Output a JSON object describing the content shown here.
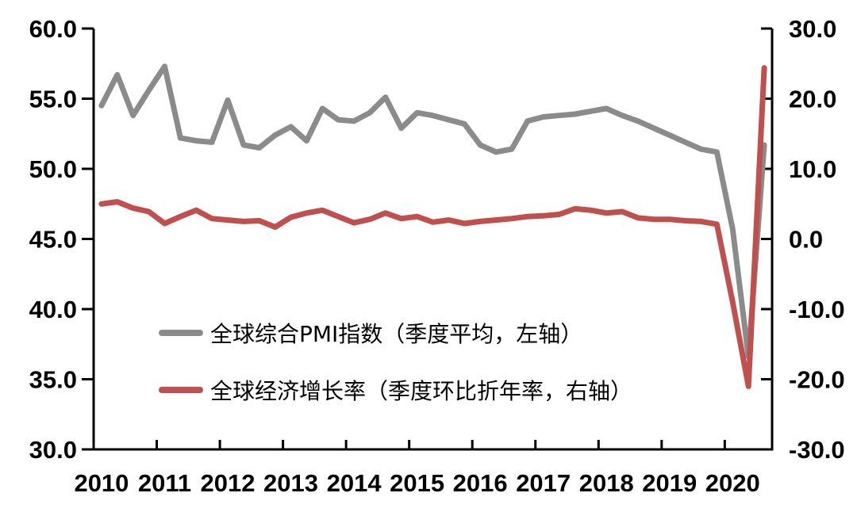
{
  "chart_data": {
    "type": "line",
    "title": "",
    "grid": false,
    "legend_position": "inside-center-left",
    "x_axis": {
      "year_labels": [
        "2010",
        "2011",
        "2012",
        "2013",
        "2014",
        "2015",
        "2016",
        "2017",
        "2018",
        "2019",
        "2020"
      ],
      "quarters": [
        "2010Q1",
        "2010Q2",
        "2010Q3",
        "2010Q4",
        "2011Q1",
        "2011Q2",
        "2011Q3",
        "2011Q4",
        "2012Q1",
        "2012Q2",
        "2012Q3",
        "2012Q4",
        "2013Q1",
        "2013Q2",
        "2013Q3",
        "2013Q4",
        "2014Q1",
        "2014Q2",
        "2014Q3",
        "2014Q4",
        "2015Q1",
        "2015Q2",
        "2015Q3",
        "2015Q4",
        "2016Q1",
        "2016Q2",
        "2016Q3",
        "2016Q4",
        "2017Q1",
        "2017Q2",
        "2017Q3",
        "2017Q4",
        "2018Q1",
        "2018Q2",
        "2018Q3",
        "2018Q4",
        "2019Q1",
        "2019Q2",
        "2019Q3",
        "2019Q4",
        "2020Q1",
        "2020Q2",
        "2020Q3"
      ]
    },
    "left_axis": {
      "min": 30,
      "max": 60,
      "step": 5,
      "tick_labels": [
        "60.0",
        "55.0",
        "50.0",
        "45.0",
        "40.0",
        "35.0",
        "30.0"
      ]
    },
    "right_axis": {
      "min": -30,
      "max": 30,
      "step": 10,
      "tick_labels": [
        "30.0",
        "20.0",
        "10.0",
        "0.0",
        "-10.0",
        "-20.0",
        "-30.0"
      ]
    },
    "series": [
      {
        "name": "全球综合PMI指数（季度平均，左轴）",
        "axis": "left",
        "color": "#8b8b8b",
        "values": [
          54.5,
          56.7,
          53.8,
          55.6,
          57.3,
          52.2,
          52.0,
          51.9,
          54.9,
          51.7,
          51.5,
          52.4,
          53.0,
          52.0,
          54.3,
          53.5,
          53.4,
          54.0,
          55.1,
          52.9,
          54.0,
          53.8,
          53.5,
          53.2,
          51.7,
          51.2,
          51.4,
          53.4,
          53.7,
          53.8,
          53.9,
          54.1,
          54.3,
          53.8,
          53.4,
          52.9,
          52.4,
          51.9,
          51.4,
          51.2,
          45.7,
          36.6,
          51.7
        ]
      },
      {
        "name": "全球经济增长率（季度环比折年率，右轴）",
        "axis": "right",
        "color": "#c0504d",
        "values": [
          5.0,
          5.3,
          4.4,
          3.9,
          2.2,
          3.2,
          4.1,
          2.9,
          2.7,
          2.5,
          2.6,
          1.7,
          3.1,
          3.7,
          4.1,
          3.2,
          2.3,
          2.8,
          3.7,
          2.9,
          3.2,
          2.4,
          2.7,
          2.2,
          2.5,
          2.7,
          2.9,
          3.2,
          3.3,
          3.5,
          4.3,
          4.1,
          3.7,
          3.9,
          3.0,
          2.8,
          2.8,
          2.6,
          2.5,
          2.1,
          -9.0,
          -21.0,
          24.4
        ]
      }
    ],
    "colors": {
      "axis": "#000000",
      "text": "#000000",
      "background": "#ffffff"
    }
  }
}
